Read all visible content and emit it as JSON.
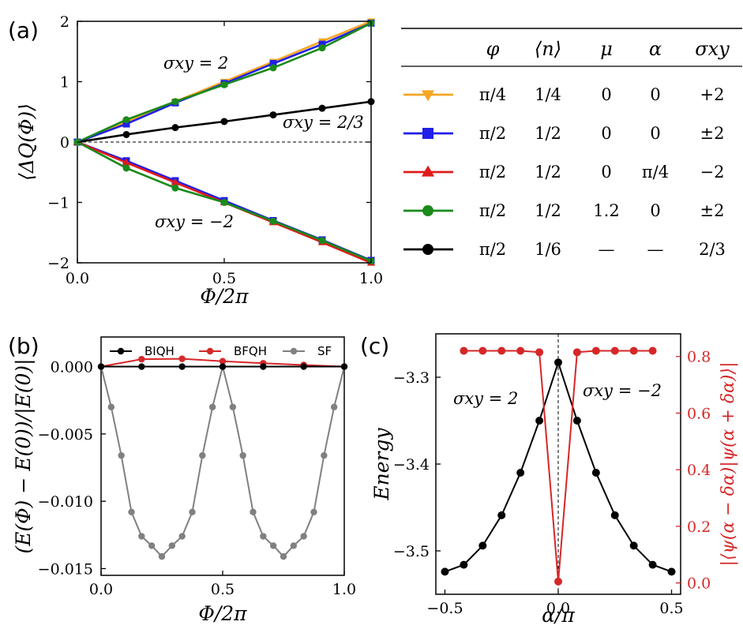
{
  "figure": {
    "panel_a": "(a)",
    "panel_b": "(b)",
    "panel_c": "(c)"
  },
  "chart_data": [
    {
      "id": "a",
      "type": "line",
      "xlabel": "Φ/2π",
      "ylabel": "⟨ΔQ(Φ)⟩",
      "xlim": [
        0,
        1
      ],
      "ylim": [
        -2,
        2
      ],
      "xticks": [
        "0.0",
        "0.5",
        "1.0"
      ],
      "yticks": [
        "−2",
        "−1",
        "0",
        "1",
        "2"
      ],
      "zero_line": true,
      "annotations": [
        "σxy = 2",
        "σxy = 2/3",
        "σxy = −2"
      ],
      "x": [
        0,
        0.1667,
        0.3333,
        0.5,
        0.6667,
        0.8333,
        1.0
      ],
      "series": [
        {
          "name": "orange",
          "color": "#f5a623",
          "marker": "tri-down",
          "values": [
            0,
            0.33,
            0.67,
            1.0,
            1.33,
            1.67,
            2.0
          ]
        },
        {
          "name": "blue up",
          "color": "#1f1fe8",
          "marker": "square",
          "values": [
            0,
            0.3,
            0.65,
            0.97,
            1.3,
            1.62,
            1.97
          ]
        },
        {
          "name": "green up",
          "color": "#1a8a1a",
          "marker": "circle",
          "values": [
            0,
            0.37,
            0.67,
            0.95,
            1.23,
            1.56,
            1.97
          ]
        },
        {
          "name": "black",
          "color": "#000000",
          "marker": "circle",
          "values": [
            0,
            0.125,
            0.24,
            0.34,
            0.45,
            0.56,
            0.67
          ]
        },
        {
          "name": "blue down",
          "color": "#1f1fe8",
          "marker": "square",
          "values": [
            0,
            -0.31,
            -0.64,
            -0.97,
            -1.3,
            -1.62,
            -1.96
          ]
        },
        {
          "name": "red",
          "color": "#e01b1b",
          "marker": "tri-up",
          "values": [
            0,
            -0.34,
            -0.67,
            -1.0,
            -1.33,
            -1.66,
            -2.0
          ]
        },
        {
          "name": "green down",
          "color": "#1a8a1a",
          "marker": "circle",
          "values": [
            0,
            -0.43,
            -0.76,
            -1.0,
            -1.31,
            -1.63,
            -1.97
          ]
        }
      ]
    },
    {
      "id": "b",
      "type": "line",
      "xlabel": "Φ/2π",
      "ylabel": "(E(Φ) − E(0))/|E(0)|",
      "xlim": [
        0,
        1
      ],
      "ylim": [
        -0.0155,
        0.0022
      ],
      "xticks": [
        "0.0",
        "0.5",
        "1.0"
      ],
      "yticks": [
        "0.000",
        "−0.005",
        "−0.010",
        "−0.015"
      ],
      "legend": [
        "BIQH",
        "BFQH",
        "SF"
      ],
      "legend_position": "top",
      "series": [
        {
          "name": "BIQH",
          "color": "#000000",
          "x": [
            0,
            0.1667,
            0.3333,
            0.5,
            0.6667,
            0.8333,
            1.0
          ],
          "values": [
            0,
            0,
            0,
            0,
            0,
            0,
            0
          ]
        },
        {
          "name": "BFQH",
          "color": "#d62728",
          "x": [
            0,
            0.1667,
            0.3333,
            0.5,
            0.6667,
            0.8333,
            1.0
          ],
          "values": [
            0,
            0.00055,
            0.00058,
            0.0004,
            0.00025,
            0.00012,
            0
          ]
        },
        {
          "name": "SF",
          "color": "#808080",
          "x": [
            0,
            0.0417,
            0.0833,
            0.125,
            0.1667,
            0.2083,
            0.25,
            0.2917,
            0.3333,
            0.375,
            0.4167,
            0.4583,
            0.5,
            0.5417,
            0.5833,
            0.625,
            0.6667,
            0.7083,
            0.75,
            0.7917,
            0.8333,
            0.875,
            0.9167,
            0.9583,
            1.0
          ],
          "values": [
            0,
            -0.003,
            -0.0066,
            -0.0108,
            -0.0126,
            -0.0133,
            -0.0141,
            -0.0133,
            -0.0126,
            -0.0108,
            -0.0066,
            -0.003,
            0,
            -0.003,
            -0.0066,
            -0.0108,
            -0.0126,
            -0.0133,
            -0.0141,
            -0.0133,
            -0.0126,
            -0.0108,
            -0.0066,
            -0.003,
            0
          ]
        }
      ]
    },
    {
      "id": "c",
      "type": "line",
      "xlabel": "α/π",
      "ylabel": "Energy",
      "ylabel_right": "|⟨ψ(α − δα)|ψ(α + δα)⟩|",
      "xlim": [
        -0.54,
        0.54
      ],
      "ylim": [
        -3.55,
        -3.25
      ],
      "ylim_right": [
        -0.04,
        0.88
      ],
      "xticks": [
        "−0.5",
        "0.0",
        "0.5"
      ],
      "yticks": [
        "−3.3",
        "−3.4",
        "−3.5"
      ],
      "yticks_right": [
        "0.0",
        "0.2",
        "0.4",
        "0.6",
        "0.8"
      ],
      "annotations": [
        "σxy = 2",
        "σxy = −2"
      ],
      "x": [
        -0.5,
        -0.4167,
        -0.3333,
        -0.25,
        -0.1667,
        -0.0833,
        0.0,
        0.0833,
        0.1667,
        0.25,
        0.3333,
        0.4167,
        0.5
      ],
      "series": [
        {
          "name": "Energy",
          "axis": "left",
          "color": "#000000",
          "values": [
            -3.524,
            -3.516,
            -3.494,
            -3.459,
            -3.41,
            -3.35,
            -3.283,
            -3.35,
            -3.41,
            -3.459,
            -3.494,
            -3.516,
            -3.524
          ]
        },
        {
          "name": "Overlap",
          "axis": "right",
          "color": "#d62728",
          "x": [
            -0.4167,
            -0.3333,
            -0.25,
            -0.1667,
            -0.0833,
            0.0,
            0.0833,
            0.1667,
            0.25,
            0.3333,
            0.4167
          ],
          "values": [
            0.82,
            0.82,
            0.82,
            0.82,
            0.815,
            0.005,
            0.815,
            0.82,
            0.82,
            0.82,
            0.82
          ]
        }
      ]
    }
  ],
  "table": {
    "headers": [
      "φ",
      "⟨n⟩",
      "μ",
      "α",
      "σxy"
    ],
    "rows": [
      {
        "color": "#f5a623",
        "marker": "tri-down",
        "phi": "π/4",
        "n": "1/4",
        "mu": "0",
        "alpha": "0",
        "sigma": "+2"
      },
      {
        "color": "#1f1fe8",
        "marker": "square",
        "phi": "π/2",
        "n": "1/2",
        "mu": "0",
        "alpha": "0",
        "sigma": "±2"
      },
      {
        "color": "#e01b1b",
        "marker": "tri-up",
        "phi": "π/2",
        "n": "1/2",
        "mu": "0",
        "alpha": "π/4",
        "sigma": "−2"
      },
      {
        "color": "#1a8a1a",
        "marker": "circle",
        "phi": "π/2",
        "n": "1/2",
        "mu": "1.2",
        "alpha": "0",
        "sigma": "±2"
      },
      {
        "color": "#000000",
        "marker": "circle",
        "phi": "π/2",
        "n": "1/6",
        "mu": "—",
        "alpha": "—",
        "sigma": "2/3"
      }
    ]
  }
}
